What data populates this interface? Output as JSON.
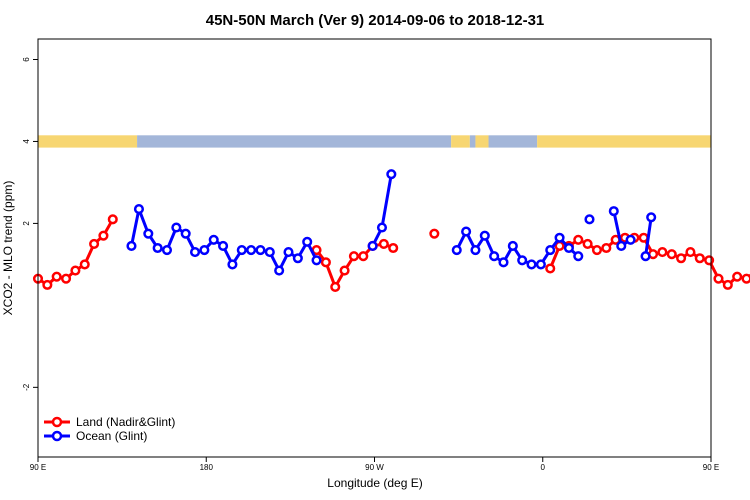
{
  "chart_data": {
    "type": "line",
    "title": "45N-50N March (Ver 9)   2014-09-06 to 2018-12-31",
    "xlabel": "Longitude (deg E)",
    "ylabel": "XCO2 - MLO trend (ppm)",
    "xlim": [
      90,
      450
    ],
    "ylim": [
      -3.7,
      6.5
    ],
    "x_ticks": [
      {
        "value": 90,
        "label": "90 E"
      },
      {
        "value": 180,
        "label": "180"
      },
      {
        "value": 270,
        "label": "90 W"
      },
      {
        "value": 360,
        "label": "0"
      },
      {
        "value": 450,
        "label": "90 E"
      },
      {
        "value": 540,
        "label": "180"
      }
    ],
    "y_ticks": [
      {
        "value": -2,
        "label": "-2"
      },
      {
        "value": 2,
        "label": "2"
      },
      {
        "value": 4,
        "label": "4"
      },
      {
        "value": 6,
        "label": "6"
      }
    ],
    "grid": false,
    "legend_position": "bottom-left",
    "land_ocean_band": {
      "y_range": [
        3.85,
        4.15
      ],
      "colors": {
        "land": "#f7d672",
        "ocean": "#a3b6d9"
      },
      "segments": [
        {
          "from": 90,
          "to": 143,
          "type": "land"
        },
        {
          "from": 143,
          "to": 311,
          "type": "ocean"
        },
        {
          "from": 311,
          "to": 321,
          "type": "land"
        },
        {
          "from": 321,
          "to": 324,
          "type": "ocean"
        },
        {
          "from": 324,
          "to": 331,
          "type": "land"
        },
        {
          "from": 331,
          "to": 357,
          "type": "ocean"
        },
        {
          "from": 357,
          "to": 502,
          "type": "land"
        },
        {
          "from": 502,
          "to": 540,
          "type": "ocean"
        }
      ]
    },
    "series": [
      {
        "name": "Land (Nadir&Glint)",
        "color": "#ff0000",
        "points": [
          [
            90,
            0.65
          ],
          [
            95,
            0.5
          ],
          [
            100,
            0.7
          ],
          [
            105,
            0.65
          ],
          [
            110,
            0.85
          ],
          [
            115,
            1.0
          ],
          [
            120,
            1.5
          ],
          [
            125,
            1.7
          ],
          [
            130,
            2.1
          ],
          null,
          [
            239,
            1.35
          ],
          [
            244,
            1.05
          ],
          [
            249,
            0.45
          ],
          [
            254,
            0.85
          ],
          [
            259,
            1.2
          ],
          [
            264,
            1.2
          ],
          [
            269,
            1.45
          ],
          [
            275,
            1.5
          ],
          [
            280,
            1.4
          ],
          null,
          [
            302,
            1.75
          ],
          null,
          [
            364,
            0.9
          ],
          [
            369,
            1.45
          ],
          [
            374,
            1.45
          ],
          [
            379,
            1.6
          ],
          [
            384,
            1.5
          ],
          [
            389,
            1.35
          ],
          [
            394,
            1.4
          ],
          [
            399,
            1.6
          ],
          [
            404,
            1.65
          ],
          [
            409,
            1.65
          ],
          [
            414,
            1.65
          ],
          [
            419,
            1.25
          ],
          [
            424,
            1.3
          ],
          [
            429,
            1.25
          ],
          [
            434,
            1.15
          ],
          [
            439,
            1.3
          ],
          [
            444,
            1.15
          ],
          [
            449,
            1.1
          ],
          [
            454,
            0.65
          ],
          [
            459,
            0.5
          ],
          [
            464,
            0.7
          ],
          [
            469,
            0.65
          ],
          [
            474,
            0.85
          ],
          [
            479,
            1.0
          ],
          [
            484,
            1.5
          ],
          [
            489,
            1.7
          ],
          [
            494,
            2.1
          ]
        ]
      },
      {
        "name": "Ocean (Glint)",
        "color": "#0000ff",
        "points": [
          [
            140,
            1.45
          ],
          [
            144,
            2.35
          ],
          [
            149,
            1.75
          ],
          [
            154,
            1.4
          ],
          [
            159,
            1.35
          ],
          [
            164,
            1.9
          ],
          [
            169,
            1.75
          ],
          [
            174,
            1.3
          ],
          [
            179,
            1.35
          ],
          [
            184,
            1.6
          ],
          [
            189,
            1.45
          ],
          [
            194,
            1.0
          ],
          [
            199,
            1.35
          ],
          [
            204,
            1.35
          ],
          [
            209,
            1.35
          ],
          [
            214,
            1.3
          ],
          [
            219,
            0.85
          ],
          [
            224,
            1.3
          ],
          [
            229,
            1.15
          ],
          [
            234,
            1.55
          ],
          [
            239,
            1.1
          ],
          null,
          [
            269,
            1.45
          ],
          [
            274,
            1.9
          ],
          [
            279,
            3.2
          ],
          null,
          [
            314,
            1.35
          ],
          [
            319,
            1.8
          ],
          [
            324,
            1.35
          ],
          [
            329,
            1.7
          ],
          [
            334,
            1.2
          ],
          [
            339,
            1.05
          ],
          [
            344,
            1.45
          ],
          [
            349,
            1.1
          ],
          [
            354,
            1.0
          ],
          [
            359,
            1.0
          ],
          [
            364,
            1.35
          ],
          [
            369,
            1.65
          ],
          [
            374,
            1.4
          ],
          [
            379,
            1.2
          ],
          null,
          [
            385,
            2.1
          ],
          null,
          [
            398,
            2.3
          ],
          [
            402,
            1.45
          ],
          [
            407,
            1.6
          ],
          null,
          [
            415,
            1.2
          ],
          [
            418,
            2.15
          ]
        ]
      }
    ]
  }
}
